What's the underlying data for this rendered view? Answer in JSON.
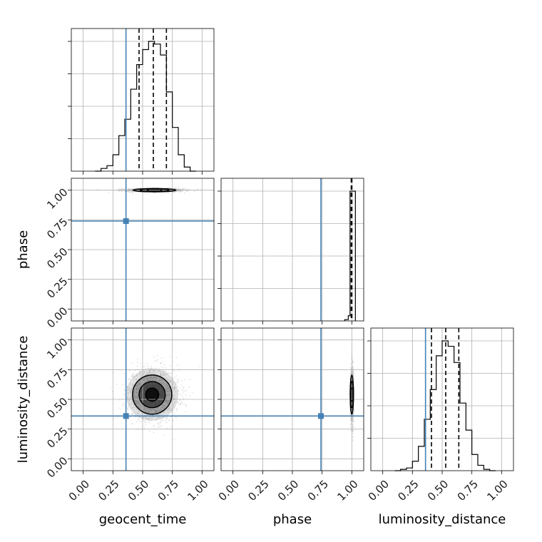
{
  "chart_data": {
    "type": "corner",
    "parameters": [
      "geocent_time",
      "phase",
      "luminosity_distance"
    ],
    "axis_labels": {
      "geocent_time": "geocent_time",
      "phase": "phase",
      "luminosity_distance": "luminosity_distance"
    },
    "range": [
      -0.1,
      1.1
    ],
    "ticks": [
      0.0,
      0.25,
      0.5,
      0.75,
      1.0
    ],
    "tick_labels": [
      "0.00",
      "0.25",
      "0.50",
      "0.75",
      "1.00"
    ],
    "grid": true,
    "colors": {
      "truth": "#4682b4",
      "samples": "#000000"
    },
    "truths": {
      "geocent_time": 0.36,
      "phase": 0.74,
      "luminosity_distance": 0.36
    },
    "quantiles": {
      "geocent_time": [
        0.47,
        0.59,
        0.7
      ],
      "phase": [
        0.995,
        1.0,
        1.0
      ],
      "luminosity_distance": [
        0.41,
        0.53,
        0.64
      ]
    },
    "histograms": {
      "geocent_time": {
        "bin_edges": [
          0.1,
          0.15,
          0.2,
          0.25,
          0.3,
          0.35,
          0.4,
          0.45,
          0.5,
          0.55,
          0.6,
          0.65,
          0.7,
          0.75,
          0.8,
          0.85,
          0.9,
          0.95
        ],
        "counts": [
          0,
          2,
          4,
          12,
          26,
          38,
          60,
          78,
          89,
          95,
          93,
          85,
          58,
          32,
          12,
          3,
          0
        ]
      },
      "phase": {
        "bin_edges": [
          0.94,
          0.97,
          0.985,
          1.0,
          1.03
        ],
        "counts": [
          1,
          4,
          100,
          100
        ]
      },
      "luminosity_distance": {
        "bin_edges": [
          0.1,
          0.15,
          0.2,
          0.25,
          0.3,
          0.35,
          0.4,
          0.45,
          0.5,
          0.55,
          0.6,
          0.65,
          0.7,
          0.75,
          0.8,
          0.85,
          0.9,
          0.95
        ],
        "counts": [
          0,
          1,
          2,
          7,
          18,
          38,
          60,
          85,
          96,
          92,
          80,
          50,
          30,
          12,
          4,
          1,
          0
        ]
      }
    },
    "joint_2d": [
      {
        "x": "geocent_time",
        "y": "phase",
        "center": [
          0.6,
          1.0
        ],
        "sigma": [
          0.12,
          0.008
        ]
      },
      {
        "x": "geocent_time",
        "y": "luminosity_distance",
        "center": [
          0.58,
          0.54
        ],
        "sigma": [
          0.11,
          0.11
        ]
      },
      {
        "x": "phase",
        "y": "luminosity_distance",
        "center": [
          1.0,
          0.54
        ],
        "sigma": [
          0.006,
          0.11
        ]
      }
    ]
  }
}
